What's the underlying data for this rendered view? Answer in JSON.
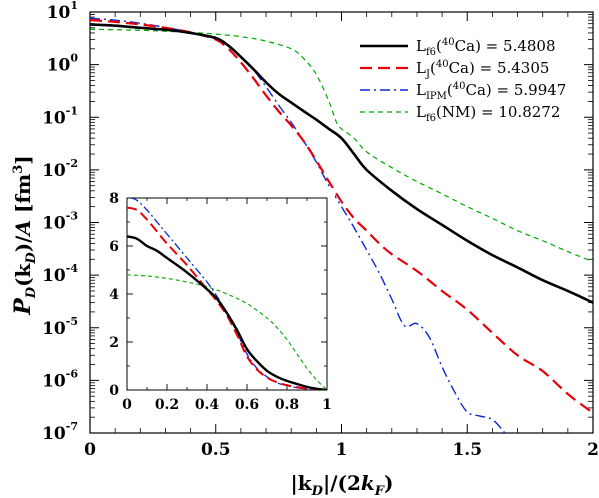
{
  "chart_data": [
    {
      "type": "line",
      "ylog": true,
      "xlabel": "|k_D|/(2k_F)",
      "ylabel": "P_D(k_D)/A [fm^3]",
      "xlim": [
        0,
        2
      ],
      "ylim": [
        1e-07,
        10
      ],
      "xticks": [
        "0",
        "0.5",
        "1",
        "1.5",
        "2"
      ],
      "yticks": [
        {
          "base": "10",
          "exp": "-7"
        },
        {
          "base": "10",
          "exp": "-6"
        },
        {
          "base": "10",
          "exp": "-5"
        },
        {
          "base": "10",
          "exp": "-4"
        },
        {
          "base": "10",
          "exp": "-3"
        },
        {
          "base": "10",
          "exp": "-2"
        },
        {
          "base": "10",
          "exp": "-1"
        },
        {
          "base": "10",
          "exp": "0"
        },
        {
          "base": "10",
          "exp": "1"
        }
      ],
      "legend_position": "top-right",
      "series": [
        {
          "name": "L_f6(40Ca) = 5.4808",
          "label_main": "L",
          "label_sub": "f6",
          "label_paren_sup": "40",
          "label_paren_rest": "Ca",
          "label_value": "= 5.4808",
          "color": "#000000",
          "dash": "solid",
          "width": 2.6,
          "x": [
            0,
            0.1,
            0.2,
            0.3,
            0.4,
            0.5,
            0.55,
            0.6,
            0.65,
            0.7,
            0.75,
            0.8,
            0.85,
            0.9,
            0.95,
            1.0,
            1.05,
            1.1,
            1.2,
            1.3,
            1.4,
            1.5,
            1.6,
            1.7,
            1.8,
            1.9,
            2.0
          ],
          "y": [
            5.8,
            5.5,
            5.0,
            4.6,
            4.0,
            3.2,
            2.3,
            1.4,
            0.82,
            0.46,
            0.28,
            0.19,
            0.13,
            0.09,
            0.06,
            0.04,
            0.02,
            0.01,
            0.004,
            0.0018,
            0.0009,
            0.00045,
            0.00024,
            0.00014,
            8e-05,
            5e-05,
            3e-05
          ]
        },
        {
          "name": "L_J(40Ca) = 5.4305",
          "label_main": "L",
          "label_sub": "J",
          "label_paren_sup": "40",
          "label_paren_rest": "Ca",
          "label_value": "= 5.4305",
          "color": "#e8000b",
          "dash": "12,6",
          "width": 2.2,
          "x": [
            0,
            0.1,
            0.2,
            0.3,
            0.4,
            0.5,
            0.55,
            0.6,
            0.65,
            0.7,
            0.75,
            0.8,
            0.85,
            0.9,
            0.95,
            1.0,
            1.05,
            1.1,
            1.15,
            1.2,
            1.3,
            1.4,
            1.5,
            1.6,
            1.7,
            1.8,
            1.9,
            2.0
          ],
          "y": [
            7.0,
            6.5,
            5.8,
            5.0,
            4.1,
            3.0,
            2.0,
            1.1,
            0.55,
            0.26,
            0.13,
            0.07,
            0.035,
            0.015,
            0.006,
            0.0025,
            0.0012,
            0.0007,
            0.0004,
            0.00025,
            0.00012,
            5e-05,
            2.2e-05,
            8e-06,
            3e-06,
            1.5e-06,
            5.5e-07,
            2.4e-07
          ]
        },
        {
          "name": "L_IPM(40Ca) = 5.9947",
          "label_main": "L",
          "label_sub": "IPM",
          "label_paren_sup": "40",
          "label_paren_rest": "Ca",
          "label_value": "= 5.9947",
          "color": "#0a28d6",
          "dash": "10,4,2,4",
          "width": 1.4,
          "x": [
            0,
            0.1,
            0.2,
            0.3,
            0.4,
            0.5,
            0.55,
            0.6,
            0.65,
            0.7,
            0.75,
            0.8,
            0.85,
            0.9,
            0.95,
            1.0,
            1.05,
            1.1,
            1.15,
            1.2,
            1.25,
            1.3,
            1.35,
            1.4,
            1.45,
            1.5,
            1.55,
            1.6,
            1.65
          ],
          "y": [
            7.6,
            7.0,
            6.1,
            5.1,
            4.1,
            3.1,
            2.3,
            1.45,
            0.8,
            0.38,
            0.17,
            0.08,
            0.035,
            0.014,
            0.005,
            0.002,
            0.0008,
            0.0003,
            0.00011,
            3.5e-05,
            1.1e-05,
            1.2e-05,
            6.5e-06,
            1.8e-06,
            6e-07,
            2.5e-07,
            2.1e-07,
            1.8e-07,
            1e-07
          ]
        },
        {
          "name": "L_f6(NM) = 10.8272",
          "label_main": "L",
          "label_sub": "f6",
          "label_paren_sup": "",
          "label_paren_rest": "NM",
          "label_value": "= 10.8272",
          "color": "#00a800",
          "dash": "5,4",
          "width": 1.2,
          "x": [
            0,
            0.1,
            0.2,
            0.3,
            0.4,
            0.5,
            0.6,
            0.7,
            0.8,
            0.85,
            0.9,
            0.95,
            0.98,
            1.0,
            1.05,
            1.1,
            1.2,
            1.3,
            1.4,
            1.5,
            1.6,
            1.7,
            1.8,
            1.9,
            2.0
          ],
          "y": [
            4.7,
            4.6,
            4.5,
            4.3,
            4.1,
            3.8,
            3.4,
            2.8,
            2.0,
            1.3,
            0.65,
            0.2,
            0.08,
            0.06,
            0.04,
            0.022,
            0.011,
            0.006,
            0.0035,
            0.002,
            0.0012,
            0.0007,
            0.00045,
            0.00028,
            0.00018
          ]
        }
      ]
    },
    {
      "type": "line",
      "ylog": false,
      "xlim": [
        0,
        1
      ],
      "ylim": [
        0,
        8
      ],
      "xticks": [
        "0",
        "0.2",
        "0.4",
        "0.6",
        "0.8",
        "1"
      ],
      "yticks": [
        "0",
        "2",
        "4",
        "6",
        "8"
      ],
      "series": [
        {
          "name": "L_f6(40Ca) = 5.4808",
          "color": "#000000",
          "dash": "solid",
          "width": 2.4,
          "x": [
            0,
            0.05,
            0.1,
            0.15,
            0.2,
            0.3,
            0.4,
            0.45,
            0.5,
            0.55,
            0.6,
            0.65,
            0.7,
            0.75,
            0.8,
            0.85,
            0.9,
            0.95,
            1.0
          ],
          "y": [
            6.4,
            6.3,
            6.0,
            5.8,
            5.5,
            4.9,
            4.2,
            3.8,
            3.2,
            2.5,
            1.7,
            1.2,
            0.8,
            0.55,
            0.38,
            0.25,
            0.13,
            0.05,
            0.0
          ]
        },
        {
          "name": "L_J(40Ca) = 5.4305",
          "color": "#e8000b",
          "dash": "10,5",
          "width": 2.0,
          "x": [
            0,
            0.05,
            0.1,
            0.15,
            0.2,
            0.3,
            0.4,
            0.45,
            0.5,
            0.55,
            0.6,
            0.65,
            0.7,
            0.75,
            0.8,
            0.85,
            0.9,
            0.95,
            1.0
          ],
          "y": [
            7.6,
            7.5,
            7.1,
            6.6,
            6.1,
            5.2,
            4.2,
            3.7,
            3.1,
            2.3,
            1.4,
            0.85,
            0.52,
            0.32,
            0.2,
            0.12,
            0.05,
            0.01,
            0.0
          ]
        },
        {
          "name": "L_IPM(40Ca) = 5.9947",
          "color": "#0a28d6",
          "dash": "8,3,2,3",
          "width": 1.3,
          "x": [
            0.02,
            0.05,
            0.1,
            0.15,
            0.2,
            0.3,
            0.4,
            0.45,
            0.5,
            0.55,
            0.6,
            0.65,
            0.7,
            0.75,
            0.8,
            0.85,
            0.9,
            0.95,
            1.0
          ],
          "y": [
            8.0,
            7.9,
            7.5,
            7.0,
            6.5,
            5.5,
            4.5,
            3.9,
            3.2,
            2.4,
            1.5,
            0.9,
            0.55,
            0.3,
            0.18,
            0.1,
            0.04,
            0.01,
            0.0
          ]
        },
        {
          "name": "L_f6(NM) = 10.8272",
          "color": "#00a800",
          "dash": "4,3",
          "width": 1.1,
          "x": [
            0,
            0.1,
            0.2,
            0.3,
            0.4,
            0.5,
            0.6,
            0.7,
            0.75,
            0.8,
            0.85,
            0.9,
            0.95,
            1.0
          ],
          "y": [
            4.8,
            4.75,
            4.65,
            4.5,
            4.3,
            4.0,
            3.6,
            3.0,
            2.6,
            2.1,
            1.5,
            0.9,
            0.4,
            0.0
          ]
        }
      ]
    }
  ]
}
